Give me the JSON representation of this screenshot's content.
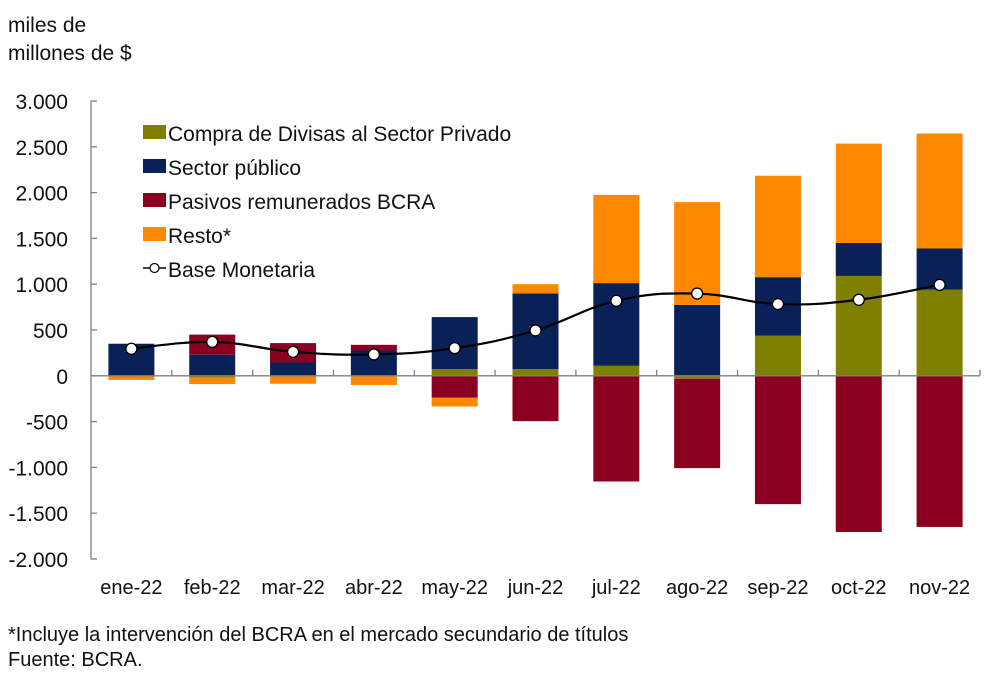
{
  "unit_label": [
    "miles de",
    "millones de $"
  ],
  "footnote": {
    "note": "*Incluye la intervención del BCRA en el mercado secundario de títulos",
    "source": "Fuente: BCRA."
  },
  "chart_data": {
    "type": "bar",
    "stacked": true,
    "title": "",
    "xlabel": "",
    "ylabel": "miles de millones de $",
    "ylim": [
      -2000,
      3000
    ],
    "yticks": [
      3000,
      2500,
      2000,
      1500,
      1000,
      500,
      0,
      -500,
      -1000,
      -1500,
      -2000
    ],
    "ytick_labels": [
      "3.000",
      "2.500",
      "2.000",
      "1.500",
      "1.000",
      "500",
      "0",
      "-500",
      "-1.000",
      "-1.500",
      "-2.000"
    ],
    "grid": false,
    "legend_position": "top-left",
    "categories": [
      "ene-22",
      "feb-22",
      "mar-22",
      "abr-22",
      "may-22",
      "jun-22",
      "jul-22",
      "ago-22",
      "sep-22",
      "oct-22",
      "nov-22"
    ],
    "series": [
      {
        "name": "Compra de Divisas al Sector Privado",
        "color": "#7f7f00",
        "kind": "bar",
        "values": [
          0,
          -20,
          0,
          0,
          73,
          73,
          109,
          -33,
          440,
          1090,
          940
        ]
      },
      {
        "name": "Sector público",
        "color": "#0a2158",
        "kind": "bar",
        "values": [
          350,
          230,
          145,
          276,
          568,
          825,
          903,
          775,
          637,
          360,
          450
        ]
      },
      {
        "name": "Pasivos remunerados BCRA",
        "color": "#8b0020",
        "kind": "bar",
        "values": [
          0,
          220,
          212,
          62,
          -240,
          -495,
          -1154,
          -975,
          -1401,
          -1705,
          -1650
        ]
      },
      {
        "name": "Resto*",
        "color": "#ff8800",
        "kind": "bar",
        "values": [
          -45,
          -70,
          -87,
          -100,
          -95,
          102,
          963,
          1121,
          1107,
          1085,
          1255
        ]
      },
      {
        "name": "Base Monetaria",
        "color": "#000000",
        "kind": "line",
        "values": [
          295,
          370,
          262,
          233,
          302,
          495,
          819,
          898,
          783,
          830,
          993
        ]
      }
    ]
  }
}
